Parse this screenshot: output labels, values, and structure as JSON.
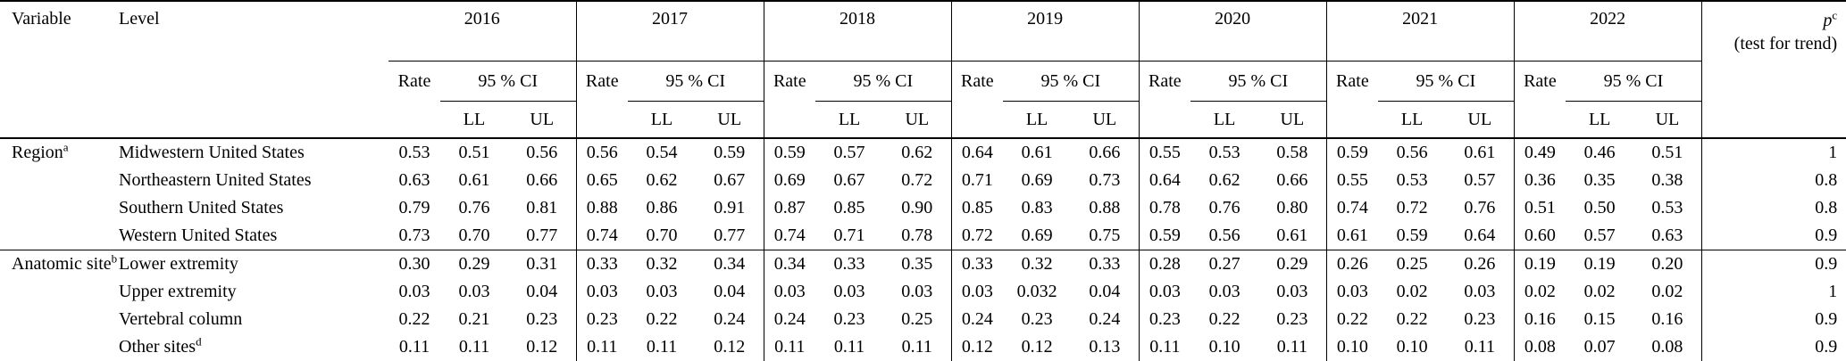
{
  "table": {
    "col_headers": {
      "variable": "Variable",
      "level": "Level",
      "years": [
        "2016",
        "2017",
        "2018",
        "2019",
        "2020",
        "2021",
        "2022"
      ],
      "rate": "Rate",
      "ci": "95 % CI",
      "ll": "LL",
      "ul": "UL",
      "p_main": "p",
      "p_sup": "c",
      "p_sub": "(test for trend)"
    },
    "sections": [
      {
        "variable": "Region",
        "variable_sup": "a",
        "rows": [
          {
            "level": "Midwestern United States",
            "level_sup": "",
            "values": [
              [
                "0.53",
                "0.51",
                "0.56"
              ],
              [
                "0.56",
                "0.54",
                "0.59"
              ],
              [
                "0.59",
                "0.57",
                "0.62"
              ],
              [
                "0.64",
                "0.61",
                "0.66"
              ],
              [
                "0.55",
                "0.53",
                "0.58"
              ],
              [
                "0.59",
                "0.56",
                "0.61"
              ],
              [
                "0.49",
                "0.46",
                "0.51"
              ]
            ],
            "p": "1"
          },
          {
            "level": "Northeastern United States",
            "level_sup": "",
            "values": [
              [
                "0.63",
                "0.61",
                "0.66"
              ],
              [
                "0.65",
                "0.62",
                "0.67"
              ],
              [
                "0.69",
                "0.67",
                "0.72"
              ],
              [
                "0.71",
                "0.69",
                "0.73"
              ],
              [
                "0.64",
                "0.62",
                "0.66"
              ],
              [
                "0.55",
                "0.53",
                "0.57"
              ],
              [
                "0.36",
                "0.35",
                "0.38"
              ]
            ],
            "p": "0.8"
          },
          {
            "level": "Southern United States",
            "level_sup": "",
            "values": [
              [
                "0.79",
                "0.76",
                "0.81"
              ],
              [
                "0.88",
                "0.86",
                "0.91"
              ],
              [
                "0.87",
                "0.85",
                "0.90"
              ],
              [
                "0.85",
                "0.83",
                "0.88"
              ],
              [
                "0.78",
                "0.76",
                "0.80"
              ],
              [
                "0.74",
                "0.72",
                "0.76"
              ],
              [
                "0.51",
                "0.50",
                "0.53"
              ]
            ],
            "p": "0.8"
          },
          {
            "level": "Western United States",
            "level_sup": "",
            "values": [
              [
                "0.73",
                "0.70",
                "0.77"
              ],
              [
                "0.74",
                "0.70",
                "0.77"
              ],
              [
                "0.74",
                "0.71",
                "0.78"
              ],
              [
                "0.72",
                "0.69",
                "0.75"
              ],
              [
                "0.59",
                "0.56",
                "0.61"
              ],
              [
                "0.61",
                "0.59",
                "0.64"
              ],
              [
                "0.60",
                "0.57",
                "0.63"
              ]
            ],
            "p": "0.9"
          }
        ]
      },
      {
        "variable": "Anatomic site",
        "variable_sup": "b",
        "rows": [
          {
            "level": "Lower extremity",
            "level_sup": "",
            "values": [
              [
                "0.30",
                "0.29",
                "0.31"
              ],
              [
                "0.33",
                "0.32",
                "0.34"
              ],
              [
                "0.34",
                "0.33",
                "0.35"
              ],
              [
                "0.33",
                "0.32",
                "0.33"
              ],
              [
                "0.28",
                "0.27",
                "0.29"
              ],
              [
                "0.26",
                "0.25",
                "0.26"
              ],
              [
                "0.19",
                "0.19",
                "0.20"
              ]
            ],
            "p": "0.9"
          },
          {
            "level": "Upper extremity",
            "level_sup": "",
            "values": [
              [
                "0.03",
                "0.03",
                "0.04"
              ],
              [
                "0.03",
                "0.03",
                "0.04"
              ],
              [
                "0.03",
                "0.03",
                "0.03"
              ],
              [
                "0.03",
                "0.032",
                "0.04"
              ],
              [
                "0.03",
                "0.03",
                "0.03"
              ],
              [
                "0.03",
                "0.02",
                "0.03"
              ],
              [
                "0.02",
                "0.02",
                "0.02"
              ]
            ],
            "p": "1"
          },
          {
            "level": "Vertebral column",
            "level_sup": "",
            "values": [
              [
                "0.22",
                "0.21",
                "0.23"
              ],
              [
                "0.23",
                "0.22",
                "0.24"
              ],
              [
                "0.24",
                "0.23",
                "0.25"
              ],
              [
                "0.24",
                "0.23",
                "0.24"
              ],
              [
                "0.23",
                "0.22",
                "0.23"
              ],
              [
                "0.22",
                "0.22",
                "0.23"
              ],
              [
                "0.16",
                "0.15",
                "0.16"
              ]
            ],
            "p": "0.9"
          },
          {
            "level": "Other sites",
            "level_sup": "d",
            "values": [
              [
                "0.11",
                "0.11",
                "0.12"
              ],
              [
                "0.11",
                "0.11",
                "0.12"
              ],
              [
                "0.11",
                "0.11",
                "0.11"
              ],
              [
                "0.12",
                "0.12",
                "0.13"
              ],
              [
                "0.11",
                "0.10",
                "0.11"
              ],
              [
                "0.10",
                "0.10",
                "0.11"
              ],
              [
                "0.08",
                "0.07",
                "0.08"
              ]
            ],
            "p": "0.9"
          }
        ]
      }
    ]
  }
}
